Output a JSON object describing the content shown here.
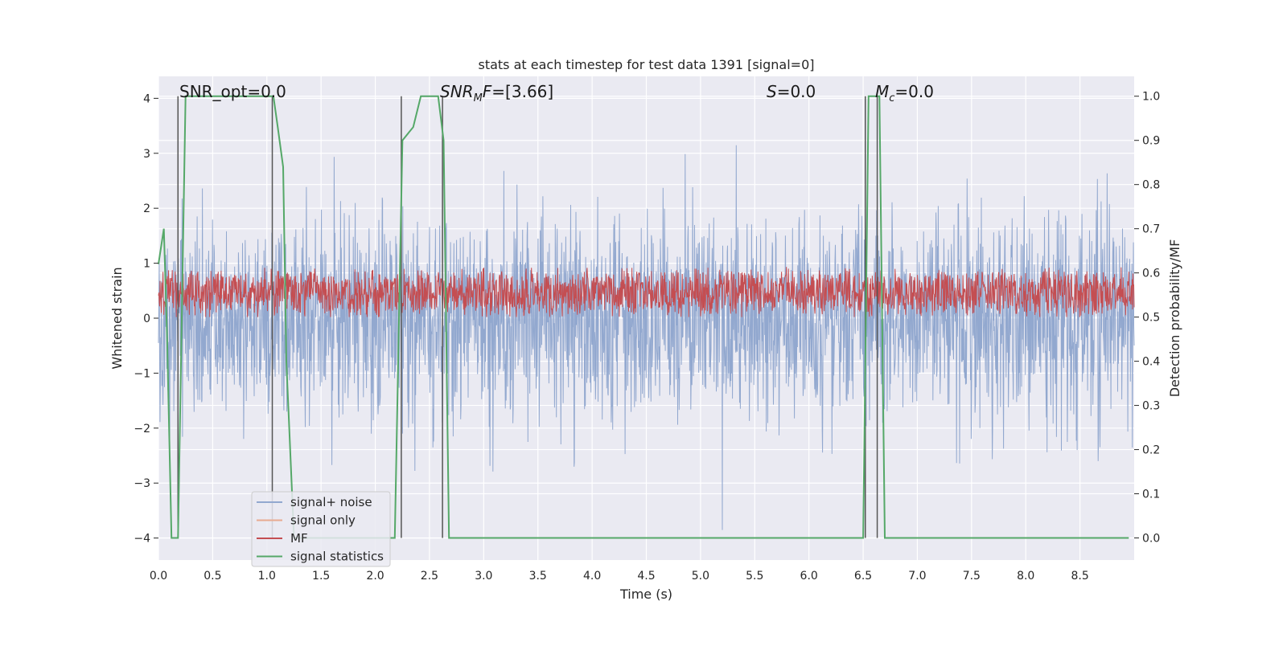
{
  "chart_data": {
    "type": "line",
    "title": "stats at each timestep for test data 1391 [signal=0]",
    "xlabel": "Time (s)",
    "ylabel": "Whitened strain",
    "y2label": "Detection probability/MF",
    "xlim": [
      0.0,
      9.0
    ],
    "ylim": [
      -4.4,
      4.4
    ],
    "y2lim": [
      -0.05,
      1.045
    ],
    "xticks": [
      "0.0",
      "0.5",
      "1.0",
      "1.5",
      "2.0",
      "2.5",
      "3.0",
      "3.5",
      "4.0",
      "4.5",
      "5.0",
      "5.5",
      "6.0",
      "6.5",
      "7.0",
      "7.5",
      "8.0",
      "8.5"
    ],
    "yticks": [
      "4",
      "3",
      "2",
      "1",
      "0",
      "−1",
      "−2",
      "−3",
      "−4"
    ],
    "y2ticks": [
      "1.0",
      "0.9",
      "0.8",
      "0.7",
      "0.6",
      "0.5",
      "0.4",
      "0.3",
      "0.2",
      "0.1",
      "0.0"
    ],
    "grid": true,
    "legend_position": "lower-left",
    "annotations": [
      {
        "text": "SNR_opt=0.0"
      },
      {
        "parts": [
          {
            "t": "SNR",
            "i": true
          },
          {
            "t": "M",
            "i": true,
            "sub": true
          },
          {
            "t": "F",
            "i": true
          },
          {
            "t": "=[3.66]"
          }
        ]
      },
      {
        "parts": [
          {
            "t": "S",
            "i": true
          },
          {
            "t": "=0.0"
          }
        ]
      },
      {
        "parts": [
          {
            "t": "M",
            "i": true
          },
          {
            "t": "c",
            "i": true,
            "sub": true
          },
          {
            "t": "=0.0"
          }
        ]
      }
    ],
    "series": [
      {
        "name": "signal+ noise",
        "color": "#92a8cf",
        "axis": "left",
        "description_values": "noisy whitened strain, amplitude about ±2 with spikes to about ±3.9"
      },
      {
        "name": "signal only",
        "color": "#e8ab90",
        "axis": "left",
        "values": []
      },
      {
        "name": "MF",
        "color": "#c44e52",
        "axis": "right",
        "range": [
          0.5,
          0.63
        ]
      },
      {
        "name": "signal statistics",
        "color": "#55a868",
        "axis": "right",
        "x": [
          0.0,
          0.05,
          0.08,
          0.12,
          0.18,
          0.25,
          0.3,
          1.0,
          1.06,
          1.1,
          1.15,
          1.18,
          1.25,
          2.18,
          2.25,
          2.35,
          2.42,
          2.48,
          2.58,
          2.63,
          2.68,
          6.5,
          6.55,
          6.6,
          6.65,
          6.7,
          8.95
        ],
        "values": [
          0.62,
          0.7,
          0.45,
          0.0,
          0.0,
          1.0,
          1.0,
          1.0,
          1.0,
          0.93,
          0.84,
          0.4,
          0.0,
          0.0,
          0.9,
          0.93,
          1.0,
          1.0,
          1.0,
          0.9,
          0.0,
          0.0,
          1.0,
          1.0,
          1.0,
          0.0,
          0.0
        ]
      }
    ],
    "vlines": [
      0.18,
      1.05,
      2.24,
      2.62,
      6.52,
      6.63
    ]
  }
}
